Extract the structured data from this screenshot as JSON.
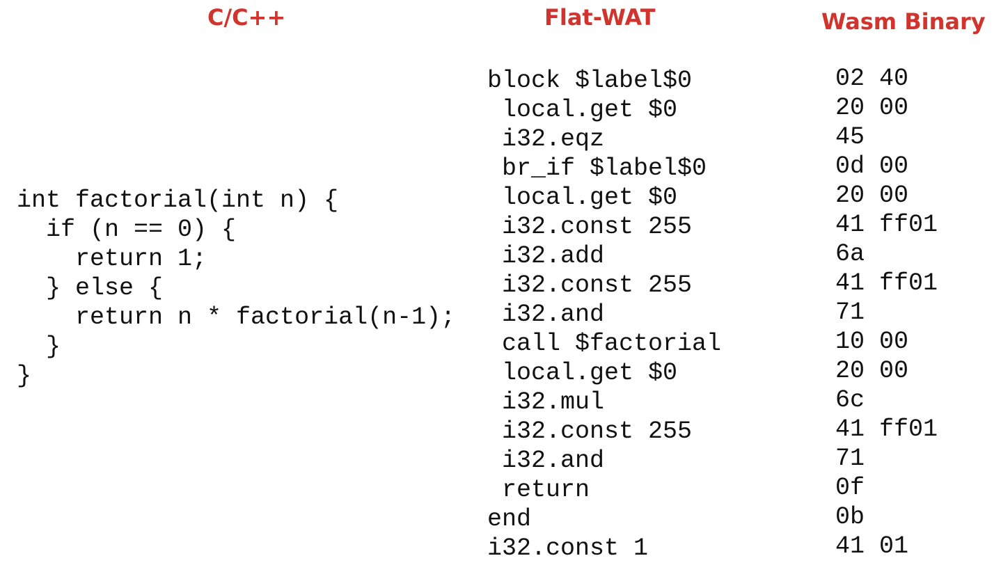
{
  "headers": {
    "c": "C/C++",
    "wat": "Flat-WAT",
    "binary": "Wasm Binary"
  },
  "accent_color": "#d0342c",
  "c_code": [
    "int factorial(int n) {",
    "  if (n == 0) {",
    "    return 1;",
    "  } else {",
    "    return n * factorial(n-1);",
    "  }",
    "}"
  ],
  "wat_code": [
    "block $label$0",
    " local.get $0",
    " i32.eqz",
    " br_if $label$0",
    " local.get $0",
    " i32.const 255",
    " i32.add",
    " i32.const 255",
    " i32.and",
    " call $factorial",
    " local.get $0",
    " i32.mul",
    " i32.const 255",
    " i32.and",
    " return",
    "end",
    "i32.const 1"
  ],
  "binary_code": [
    "02 40",
    "20 00",
    "45",
    "0d 00",
    "20 00",
    "41 ff01",
    "6a",
    "41 ff01",
    "71",
    "10 00",
    "20 00",
    "6c",
    "41 ff01",
    "71",
    "0f",
    "0b",
    "41 01"
  ]
}
